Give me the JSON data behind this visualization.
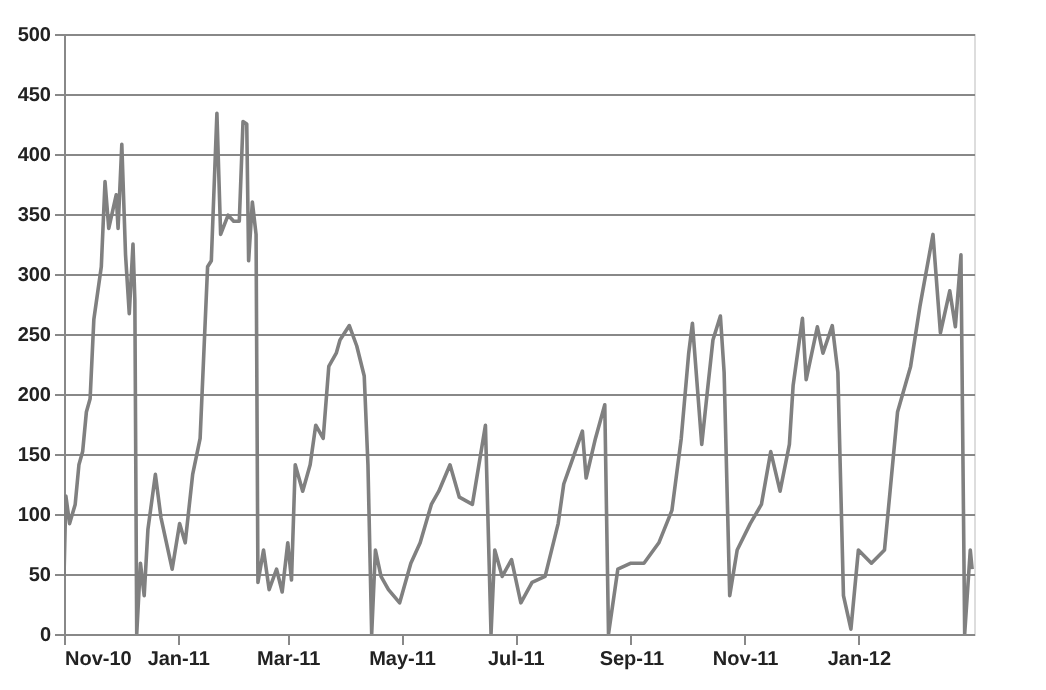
{
  "chart_data": {
    "type": "line",
    "xlim": [
      "2010-11-01",
      "2012-03-03"
    ],
    "xticks": [
      {
        "value": "2010-11-01",
        "label": "Nov-10"
      },
      {
        "value": "2011-01-01",
        "label": "Jan-11"
      },
      {
        "value": "2011-03-01",
        "label": "Mar-11"
      },
      {
        "value": "2011-05-01",
        "label": "May-11"
      },
      {
        "value": "2011-07-01",
        "label": "Jul-11"
      },
      {
        "value": "2011-09-01",
        "label": "Sep-11"
      },
      {
        "value": "2011-11-01",
        "label": "Nov-11"
      },
      {
        "value": "2012-01-01",
        "label": "Jan-12"
      }
    ],
    "ylim": [
      0,
      500
    ],
    "yticks": [
      0,
      50,
      100,
      150,
      200,
      250,
      300,
      350,
      400,
      450,
      500
    ],
    "grid": "y",
    "marker": "none",
    "line_style": "solid",
    "series": [
      {
        "color": "#808080",
        "x": [
          "2010-11-01",
          "2010-11-02",
          "2010-11-04",
          "2010-11-07",
          "2010-11-09",
          "2010-11-11",
          "2010-11-13",
          "2010-11-15",
          "2010-11-17",
          "2010-11-21",
          "2010-11-23",
          "2010-11-25",
          "2010-11-29",
          "2010-11-30",
          "2010-12-02",
          "2010-12-04",
          "2010-12-06",
          "2010-12-08",
          "2010-12-09",
          "2010-12-10",
          "2010-12-12",
          "2010-12-14",
          "2010-12-16",
          "2010-12-20",
          "2010-12-23",
          "2010-12-29",
          "2011-01-02",
          "2011-01-05",
          "2011-01-09",
          "2011-01-13",
          "2011-01-17",
          "2011-01-19",
          "2011-01-22",
          "2011-01-24",
          "2011-01-28",
          "2011-01-31",
          "2011-02-03",
          "2011-02-05",
          "2011-02-07",
          "2011-02-08",
          "2011-02-10",
          "2011-02-12",
          "2011-02-13",
          "2011-02-16",
          "2011-02-19",
          "2011-02-23",
          "2011-02-26",
          "2011-03-01",
          "2011-03-03",
          "2011-03-05",
          "2011-03-09",
          "2011-03-13",
          "2011-03-16",
          "2011-03-20",
          "2011-03-23",
          "2011-03-27",
          "2011-03-29",
          "2011-04-03",
          "2011-04-07",
          "2011-04-11",
          "2011-04-13",
          "2011-04-15",
          "2011-04-17",
          "2011-04-20",
          "2011-04-24",
          "2011-04-30",
          "2011-05-06",
          "2011-05-11",
          "2011-05-17",
          "2011-05-21",
          "2011-05-27",
          "2011-06-01",
          "2011-06-08",
          "2011-06-15",
          "2011-06-18",
          "2011-06-20",
          "2011-06-24",
          "2011-06-29",
          "2011-07-04",
          "2011-07-10",
          "2011-07-17",
          "2011-07-24",
          "2011-07-27",
          "2011-08-01",
          "2011-08-06",
          "2011-08-08",
          "2011-08-13",
          "2011-08-18",
          "2011-08-20",
          "2011-08-25",
          "2011-09-01",
          "2011-09-08",
          "2011-09-16",
          "2011-09-23",
          "2011-09-28",
          "2011-10-02",
          "2011-10-04",
          "2011-10-09",
          "2011-10-12",
          "2011-10-15",
          "2011-10-19",
          "2011-10-21",
          "2011-10-24",
          "2011-10-28",
          "2011-11-04",
          "2011-11-10",
          "2011-11-15",
          "2011-11-20",
          "2011-11-25",
          "2011-11-27",
          "2011-12-02",
          "2011-12-04",
          "2011-12-10",
          "2011-12-13",
          "2011-12-18",
          "2011-12-21",
          "2011-12-24",
          "2011-12-28",
          "2012-01-01",
          "2012-01-08",
          "2012-01-15",
          "2012-01-18",
          "2012-01-22",
          "2012-01-29",
          "2012-02-03",
          "2012-02-10",
          "2012-02-14",
          "2012-02-19",
          "2012-02-22",
          "2012-02-25",
          "2012-02-27",
          "2012-03-01",
          "2012-03-02"
        ],
        "values": [
          48,
          115,
          92,
          108,
          141,
          152,
          185,
          196,
          262,
          306,
          377,
          338,
          366,
          338,
          408,
          316,
          267,
          325,
          278,
          0,
          59,
          32,
          87,
          133,
          97,
          54,
          92,
          76,
          133,
          163,
          306,
          311,
          434,
          333,
          349,
          344,
          344,
          427,
          425,
          311,
          360,
          333,
          43,
          70,
          37,
          54,
          35,
          76,
          45,
          141,
          119,
          141,
          174,
          163,
          223,
          234,
          245,
          257,
          240,
          215,
          141,
          0,
          70,
          48,
          37,
          26,
          59,
          76,
          108,
          119,
          141,
          114,
          108,
          174,
          0,
          70,
          48,
          62,
          26,
          43,
          48,
          92,
          125,
          147,
          169,
          130,
          163,
          191,
          0,
          54,
          59,
          59,
          76,
          103,
          163,
          234,
          259,
          158,
          202,
          245,
          265,
          218,
          32,
          70,
          92,
          108,
          152,
          119,
          158,
          207,
          263,
          212,
          256,
          234,
          257,
          218,
          32,
          4,
          70,
          59,
          70,
          119,
          185,
          223,
          273,
          333,
          251,
          286,
          256,
          316,
          0,
          70,
          54
        ]
      }
    ]
  }
}
